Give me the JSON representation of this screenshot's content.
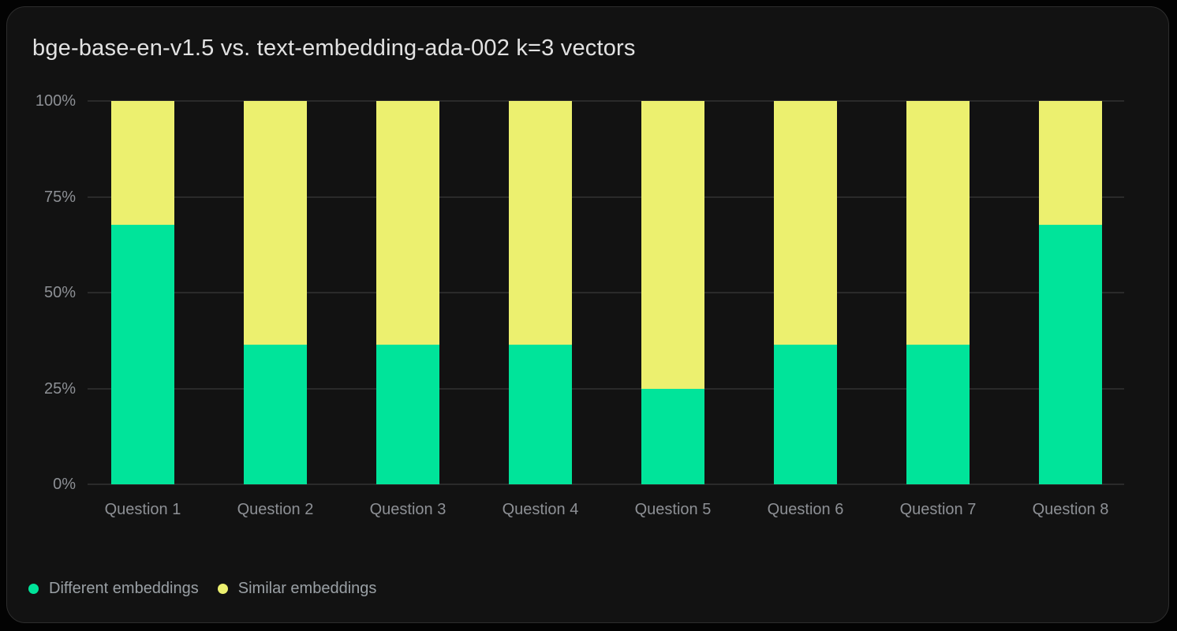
{
  "title": "bge-base-en-v1.5 vs. text-embedding-ada-002 k=3 vectors",
  "colors": {
    "page_bg": "#030303",
    "card_bg": "#121212",
    "card_border": "#2d2d2d",
    "grid": "#2a2a2a",
    "title_text": "#e2e2e2",
    "axis_text": "#8d9095",
    "legend_text": "#9aa0a5",
    "different": "#00e49a",
    "similar": "#ecf06f"
  },
  "chart_data": {
    "type": "bar",
    "stacked": true,
    "stack_unit": "percent",
    "title": "bge-base-en-v1.5 vs. text-embedding-ada-002 k=3 vectors",
    "categories": [
      "Question 1",
      "Question 2",
      "Question 3",
      "Question 4",
      "Question 5",
      "Question 6",
      "Question 7",
      "Question 8"
    ],
    "series": [
      {
        "name": "Different embeddings",
        "color_key": "different",
        "values": [
          67.7,
          36.5,
          36.5,
          36.5,
          25,
          36.5,
          36.5,
          67.7
        ]
      },
      {
        "name": "Similar embeddings",
        "color_key": "similar",
        "values": [
          32.3,
          63.5,
          63.5,
          63.5,
          75,
          63.5,
          63.5,
          32.3
        ]
      }
    ],
    "xlabel": "",
    "ylabel": "",
    "ylim": [
      0,
      100
    ],
    "yticks": [
      {
        "value": 0,
        "label": "0%"
      },
      {
        "value": 25,
        "label": "25%"
      },
      {
        "value": 50,
        "label": "50%"
      },
      {
        "value": 75,
        "label": "75%"
      },
      {
        "value": 100,
        "label": "100%"
      }
    ],
    "grid": true,
    "legend_position": "bottom-left"
  }
}
